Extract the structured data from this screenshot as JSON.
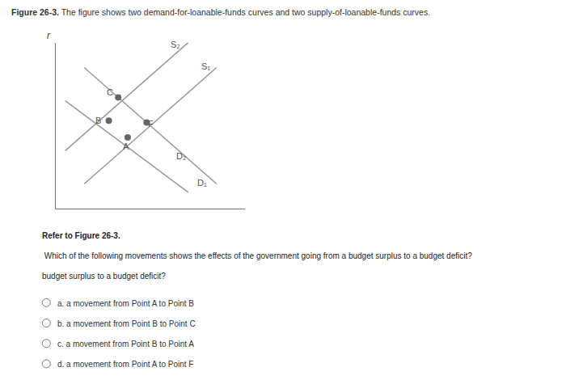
{
  "chart_data": {
    "type": "line",
    "title": "Figure 26-3.",
    "subtitle": " The figure shows two demand-for-loanable-funds curves and two supply-of-loanable-funds curves.",
    "ylabel": "r",
    "xlim": [
      0,
      10
    ],
    "ylim": [
      0,
      10
    ],
    "xticks": [],
    "yticks": [],
    "tick_labels": false,
    "grid": false,
    "legend": false,
    "series": [
      {
        "x": [
          1.5,
          8.5
        ],
        "values": [
          1.5,
          8.5
        ],
        "color": "#999999",
        "type": "line"
      },
      {
        "x": [
          0.5,
          7.0
        ],
        "values": [
          3.5,
          10.0
        ],
        "color": "#999999",
        "type": "line"
      },
      {
        "x": [
          1.5,
          8.5
        ],
        "values": [
          8.5,
          1.5
        ],
        "color": "#999999",
        "type": "line"
      },
      {
        "x": [
          0.5,
          7.0
        ],
        "values": [
          6.5,
          1.0
        ],
        "color": "#999999",
        "type": "line"
      },
      {
        "x": [
          3.8,
          2.8,
          3.3,
          4.8
        ],
        "values": [
          4.3,
          5.3,
          6.7,
          5.2
        ],
        "color": "#666666",
        "type": "scatter",
        "marker": "circle"
      }
    ],
    "annotations": [
      {
        "text": "S₁",
        "x": 7.6,
        "y": 8.2
      },
      {
        "text": "S₂",
        "x": 6.0,
        "y": 9.5
      },
      {
        "text": "D₁",
        "x": 7.4,
        "y": 1.2
      },
      {
        "text": "D₂",
        "x": 6.3,
        "y": 2.8
      }
    ],
    "point_labels": [
      {
        "text": "A",
        "x": 3.7,
        "y": 3.75
      },
      {
        "text": "B",
        "x": 2.25,
        "y": 5.3
      },
      {
        "text": "C",
        "x": 2.85,
        "y": 7.0
      },
      {
        "text": "F",
        "x": 5.0,
        "y": 5.1
      }
    ],
    "question": [
      "Refer to Figure 26-3.",
      " Which of the following movements shows the effects of the government going from a budget surplus to a budget deficit?",
      "budget surplus to a budget deficit?"
    ],
    "options": [
      "a. a movement from Point A to Point B",
      "b. a movement from Point B to Point C",
      "c. a movement from Point B to Point A",
      "d. a movement from Point A to Point F"
    ]
  }
}
